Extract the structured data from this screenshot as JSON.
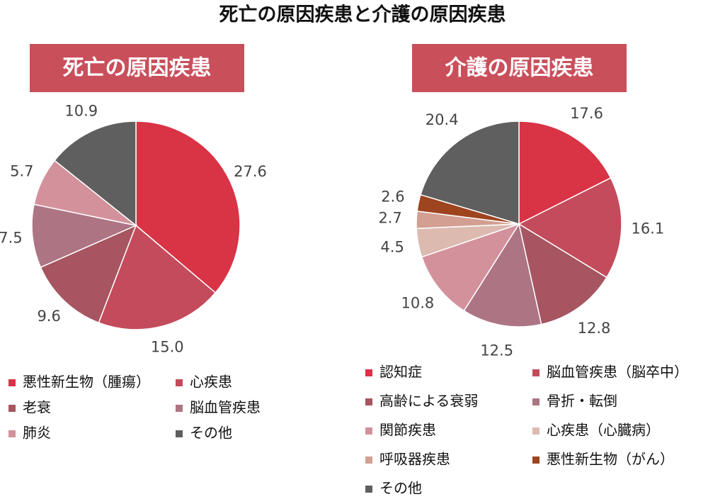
{
  "title": "死亡の原因疾患と介護の原因疾患",
  "chart_data": [
    {
      "type": "pie",
      "title": "死亡の原因疾患",
      "categories": [
        "悪性新生物（腫瘍）",
        "心疾患",
        "老衰",
        "脳血管疾患",
        "肺炎",
        "その他"
      ],
      "values": [
        27.6,
        15.0,
        9.6,
        7.5,
        5.7,
        10.9
      ],
      "value_labels": [
        "27.6",
        "15.0",
        "9.6",
        "7.5",
        "5.7",
        "10.9"
      ],
      "colors": [
        "#d93346",
        "#c44b5b",
        "#a65561",
        "#ad7484",
        "#d3919c",
        "#5f5f5f"
      ]
    },
    {
      "type": "pie",
      "title": "介護の原因疾患",
      "categories": [
        "認知症",
        "脳血管疾患（脳卒中）",
        "高齢による衰弱",
        "骨折・転倒",
        "関節疾患",
        "心疾患（心臓病）",
        "呼吸器疾患",
        "悪性新生物（がん）",
        "その他"
      ],
      "values": [
        17.6,
        16.1,
        12.8,
        12.5,
        10.8,
        4.5,
        2.7,
        2.6,
        20.4
      ],
      "value_labels": [
        "17.6",
        "16.1",
        "12.8",
        "12.5",
        "10.8",
        "4.5",
        "2.7",
        "2.6",
        "20.4"
      ],
      "colors": [
        "#d93346",
        "#c44b5b",
        "#a65561",
        "#ad7484",
        "#d3919c",
        "#dcbab0",
        "#d39f92",
        "#9e441f",
        "#5f5f5f"
      ]
    }
  ]
}
